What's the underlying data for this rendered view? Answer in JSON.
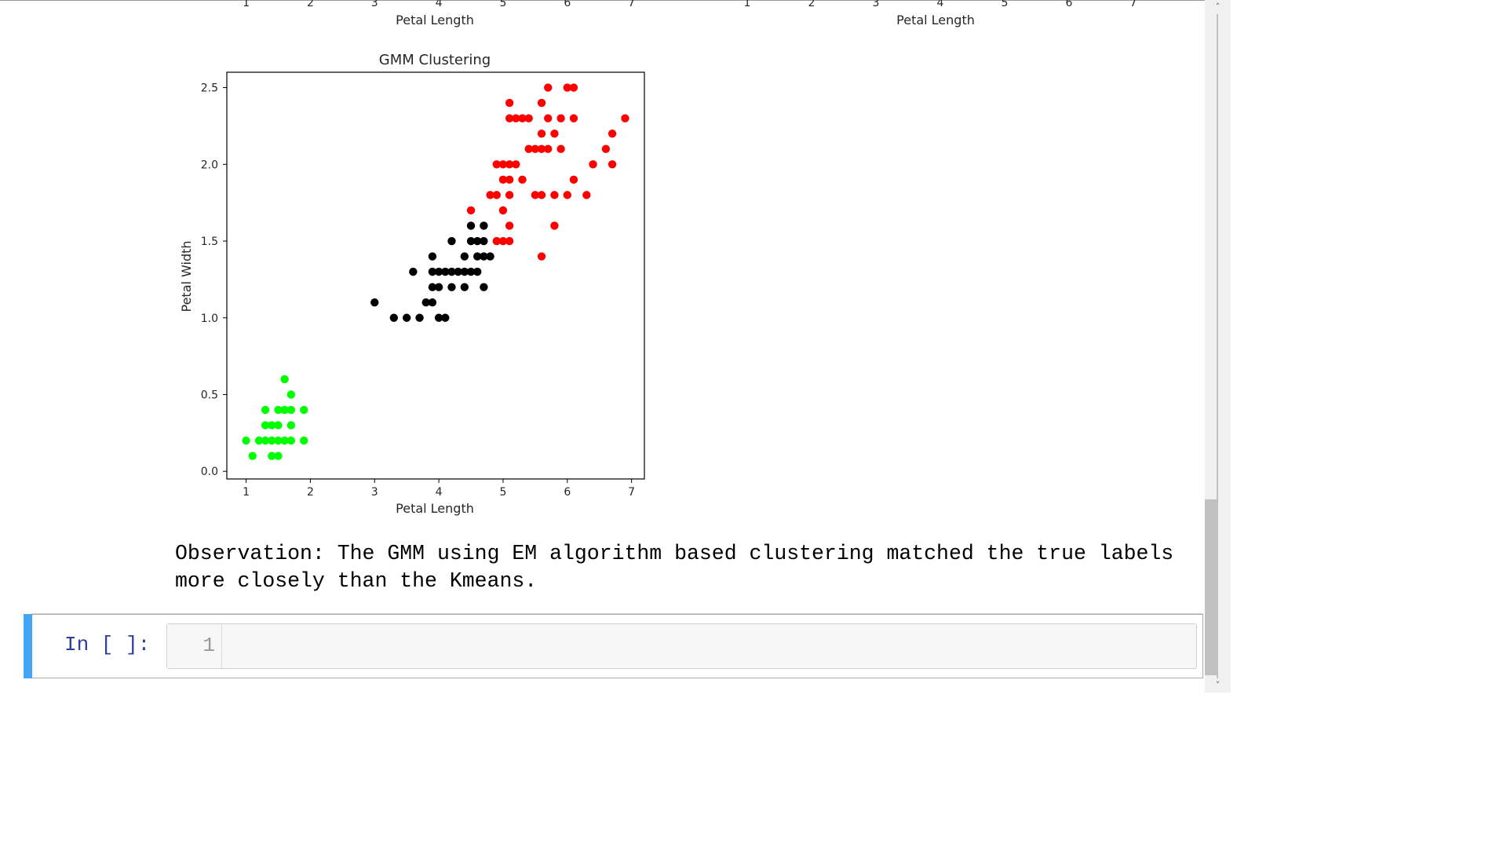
{
  "top_fragment": {
    "left_xlabel": "Petal Length",
    "right_xlabel": "Petal Length",
    "ticks": [
      "1",
      "2",
      "3",
      "4",
      "5",
      "6",
      "7"
    ]
  },
  "chart_data": {
    "type": "scatter",
    "title": "GMM Clustering",
    "xlabel": "Petal Length",
    "ylabel": "Petal Width",
    "xlim": [
      0.7,
      7.2
    ],
    "ylim": [
      -0.05,
      2.6
    ],
    "xticks": [
      1,
      2,
      3,
      4,
      5,
      6,
      7
    ],
    "yticks": [
      0.0,
      0.5,
      1.0,
      1.5,
      2.0,
      2.5
    ],
    "ytick_labels": [
      "0.0",
      "0.5",
      "1.0",
      "1.5",
      "2.0",
      "2.5"
    ],
    "grid": false,
    "series": [
      {
        "color": "#00ff00",
        "points": [
          [
            1.0,
            0.2
          ],
          [
            1.1,
            0.1
          ],
          [
            1.2,
            0.2
          ],
          [
            1.3,
            0.2
          ],
          [
            1.4,
            0.2
          ],
          [
            1.5,
            0.2
          ],
          [
            1.6,
            0.2
          ],
          [
            1.7,
            0.2
          ],
          [
            1.9,
            0.2
          ],
          [
            1.4,
            0.1
          ],
          [
            1.5,
            0.1
          ],
          [
            1.3,
            0.3
          ],
          [
            1.4,
            0.3
          ],
          [
            1.5,
            0.3
          ],
          [
            1.7,
            0.3
          ],
          [
            1.3,
            0.4
          ],
          [
            1.5,
            0.4
          ],
          [
            1.6,
            0.4
          ],
          [
            1.7,
            0.4
          ],
          [
            1.9,
            0.4
          ],
          [
            1.7,
            0.5
          ],
          [
            1.6,
            0.6
          ]
        ]
      },
      {
        "color": "#000000",
        "points": [
          [
            3.0,
            1.1
          ],
          [
            3.3,
            1.0
          ],
          [
            3.5,
            1.0
          ],
          [
            3.7,
            1.0
          ],
          [
            4.0,
            1.0
          ],
          [
            4.1,
            1.0
          ],
          [
            3.8,
            1.1
          ],
          [
            3.9,
            1.1
          ],
          [
            3.9,
            1.2
          ],
          [
            4.0,
            1.2
          ],
          [
            4.2,
            1.2
          ],
          [
            4.4,
            1.2
          ],
          [
            4.7,
            1.2
          ],
          [
            3.6,
            1.3
          ],
          [
            3.9,
            1.3
          ],
          [
            4.0,
            1.3
          ],
          [
            4.1,
            1.3
          ],
          [
            4.2,
            1.3
          ],
          [
            4.3,
            1.3
          ],
          [
            4.4,
            1.3
          ],
          [
            4.5,
            1.3
          ],
          [
            4.6,
            1.3
          ],
          [
            3.9,
            1.4
          ],
          [
            4.4,
            1.4
          ],
          [
            4.6,
            1.4
          ],
          [
            4.7,
            1.4
          ],
          [
            4.8,
            1.4
          ],
          [
            4.2,
            1.5
          ],
          [
            4.5,
            1.5
          ],
          [
            4.6,
            1.5
          ],
          [
            4.7,
            1.5
          ],
          [
            4.5,
            1.6
          ],
          [
            4.7,
            1.6
          ]
        ]
      },
      {
        "color": "#ff0000",
        "points": [
          [
            4.9,
            1.5
          ],
          [
            5.0,
            1.5
          ],
          [
            5.1,
            1.5
          ],
          [
            5.1,
            1.6
          ],
          [
            5.0,
            1.7
          ],
          [
            4.5,
            1.7
          ],
          [
            5.8,
            1.6
          ],
          [
            5.6,
            1.4
          ],
          [
            4.8,
            1.8
          ],
          [
            4.9,
            1.8
          ],
          [
            5.1,
            1.8
          ],
          [
            5.5,
            1.8
          ],
          [
            5.6,
            1.8
          ],
          [
            5.8,
            1.8
          ],
          [
            6.0,
            1.8
          ],
          [
            6.3,
            1.8
          ],
          [
            5.0,
            1.9
          ],
          [
            5.1,
            1.9
          ],
          [
            5.3,
            1.9
          ],
          [
            6.1,
            1.9
          ],
          [
            4.9,
            2.0
          ],
          [
            5.0,
            2.0
          ],
          [
            5.1,
            2.0
          ],
          [
            5.2,
            2.0
          ],
          [
            6.4,
            2.0
          ],
          [
            6.7,
            2.0
          ],
          [
            5.4,
            2.1
          ],
          [
            5.5,
            2.1
          ],
          [
            5.6,
            2.1
          ],
          [
            5.7,
            2.1
          ],
          [
            5.9,
            2.1
          ],
          [
            6.6,
            2.1
          ],
          [
            5.6,
            2.2
          ],
          [
            5.8,
            2.2
          ],
          [
            6.7,
            2.2
          ],
          [
            5.1,
            2.3
          ],
          [
            5.2,
            2.3
          ],
          [
            5.3,
            2.3
          ],
          [
            5.4,
            2.3
          ],
          [
            5.7,
            2.3
          ],
          [
            5.9,
            2.3
          ],
          [
            6.1,
            2.3
          ],
          [
            6.9,
            2.3
          ],
          [
            5.1,
            2.4
          ],
          [
            5.6,
            2.4
          ],
          [
            5.7,
            2.5
          ],
          [
            6.0,
            2.5
          ],
          [
            6.1,
            2.5
          ]
        ]
      }
    ]
  },
  "observation": "Observation: The GMM using EM algorithm based clustering matched the true labels more closely than the Kmeans.",
  "cell": {
    "prompt": "In [ ]:",
    "line_number": "1",
    "code": ""
  },
  "scrollbar": {
    "up_icon": "chevron-up-icon",
    "down_icon": "chevron-down-icon",
    "up_glyph": "˄",
    "down_glyph": "˅"
  }
}
